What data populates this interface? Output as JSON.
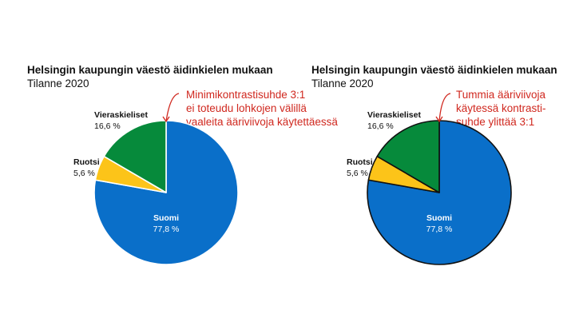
{
  "chart_data": [
    {
      "type": "pie",
      "title": "Helsingin kaupungin väestö äidinkielen mukaan",
      "subtitle": "Tilanne 2020",
      "slices": [
        {
          "name": "Suomi",
          "value_label": "77,8 %",
          "value": 77.8
        },
        {
          "name": "Ruotsi",
          "value_label": "5,6 %",
          "value": 5.6
        },
        {
          "name": "Vieraskieliset",
          "value_label": "16,6 %",
          "value": 16.6
        }
      ],
      "colors": {
        "Suomi": "#0a6fc9",
        "Ruotsi": "#fcc419",
        "Vieraskieliset": "#068a3b",
        "outline": "#ffffff"
      },
      "annotation": [
        "Minimikontrastisuhde 3:1",
        "ei toteudu lohkojen välillä",
        "vaaleita ääriviivoja käytettäessä"
      ],
      "annotation_color": "#d0281f"
    },
    {
      "type": "pie",
      "title": "Helsingin kaupungin väestö äidinkielen mukaan",
      "subtitle": "Tilanne 2020",
      "slices": [
        {
          "name": "Suomi",
          "value_label": "77,8 %",
          "value": 77.8
        },
        {
          "name": "Ruotsi",
          "value_label": "5,6 %",
          "value": 5.6
        },
        {
          "name": "Vieraskieliset",
          "value_label": "16,6 %",
          "value": 16.6
        }
      ],
      "colors": {
        "Suomi": "#0a6fc9",
        "Ruotsi": "#fcc419",
        "Vieraskieliset": "#068a3b",
        "outline": "#111111"
      },
      "annotation": [
        "Tummia ääriviivoja",
        "käytessä kontrasti-",
        "suhde ylittää 3:1"
      ],
      "annotation_color": "#d0281f"
    }
  ]
}
